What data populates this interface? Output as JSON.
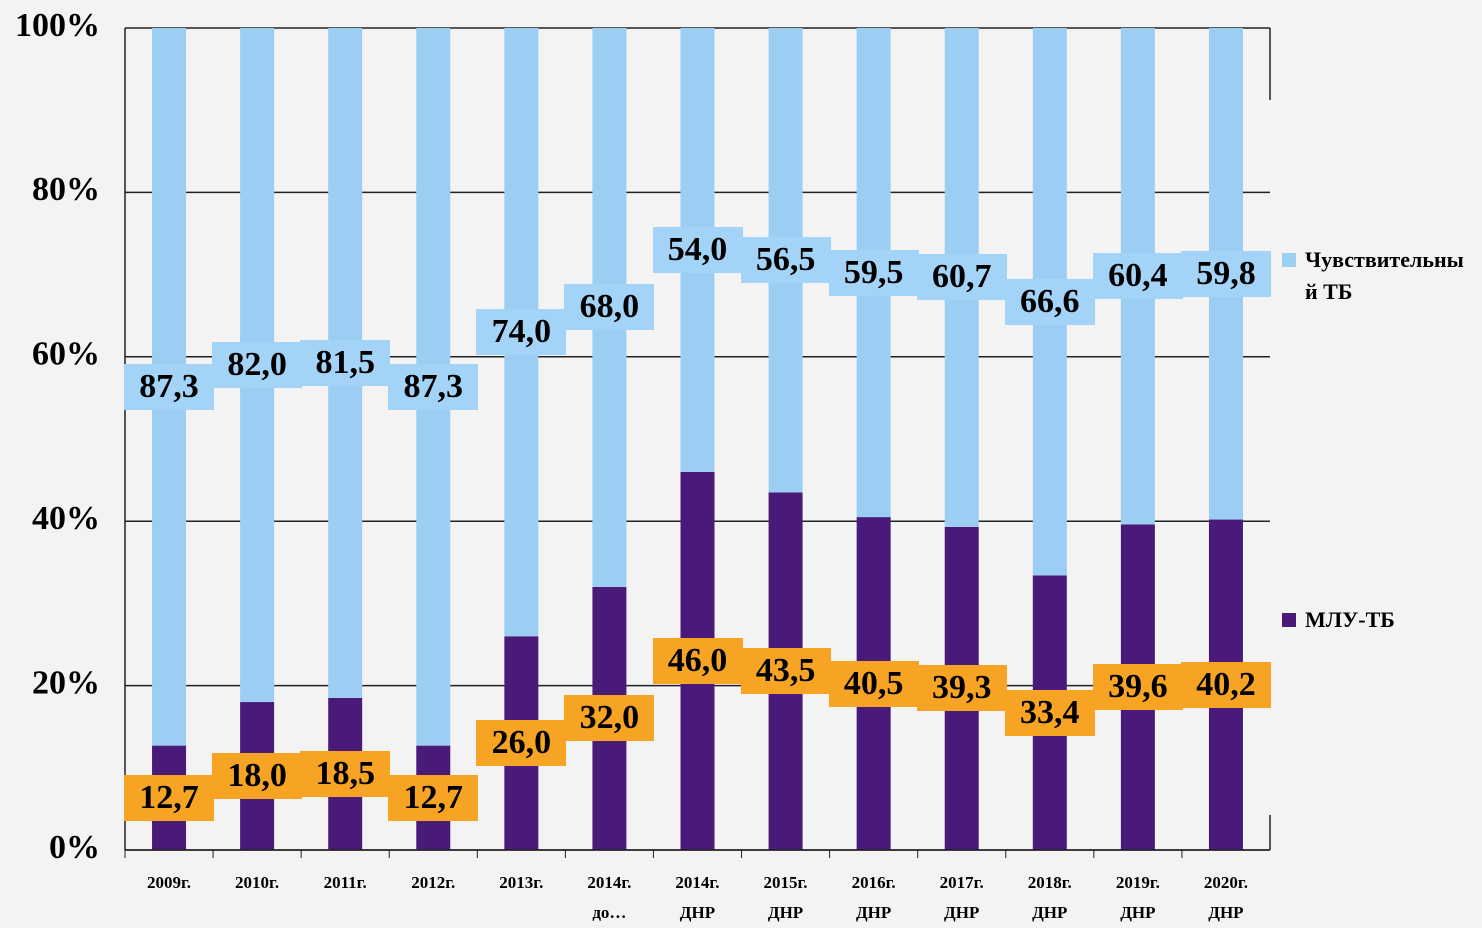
{
  "chart_data": {
    "type": "stacked_bar",
    "categories": [
      "2009г.",
      "2010г.",
      "2011г.",
      "2012г.",
      "2013г.",
      "2014г.\nдо…",
      "2014г.\nДНР",
      "2015г.\nДНР",
      "2016г.\nДНР",
      "2017г.\nДНР",
      "2018г.\nДНР",
      "2019г.\nДНР",
      "2020г.\nДНР"
    ],
    "series": [
      {
        "name": "МЛУ-ТБ",
        "color": "#4a1a7a",
        "label_color": "#f7a323",
        "values": [
          12.7,
          18.0,
          18.5,
          12.7,
          26.0,
          32.0,
          46.0,
          43.5,
          40.5,
          39.3,
          33.4,
          39.6,
          40.2
        ],
        "value_labels": [
          "12,7",
          "18,0",
          "18,5",
          "12,7",
          "26,0",
          "32,0",
          "46,0",
          "43,5",
          "40,5",
          "39,3",
          "33,4",
          "39,6",
          "40,2"
        ]
      },
      {
        "name": "Чувствительный ТБ",
        "color": "#9ccdf2",
        "label_color": "#a3d3f7",
        "values": [
          87.3,
          82.0,
          81.5,
          87.3,
          74.0,
          68.0,
          54.0,
          56.5,
          59.5,
          60.7,
          66.6,
          60.4,
          59.8
        ],
        "value_labels": [
          "87,3",
          "82,0",
          "81,5",
          "87,3",
          "74,0",
          "68,0",
          "54,0",
          "56,5",
          "59,5",
          "60,7",
          "66,6",
          "60,4",
          "59,8"
        ]
      }
    ],
    "ylim": [
      0,
      100
    ],
    "yticks": [
      {
        "value": 0,
        "label": "0%"
      },
      {
        "value": 20,
        "label": "20%"
      },
      {
        "value": 40,
        "label": "40%"
      },
      {
        "value": 60,
        "label": "60%"
      },
      {
        "value": 80,
        "label": "80%"
      },
      {
        "value": 100,
        "label": "100%"
      }
    ],
    "grid": true
  }
}
